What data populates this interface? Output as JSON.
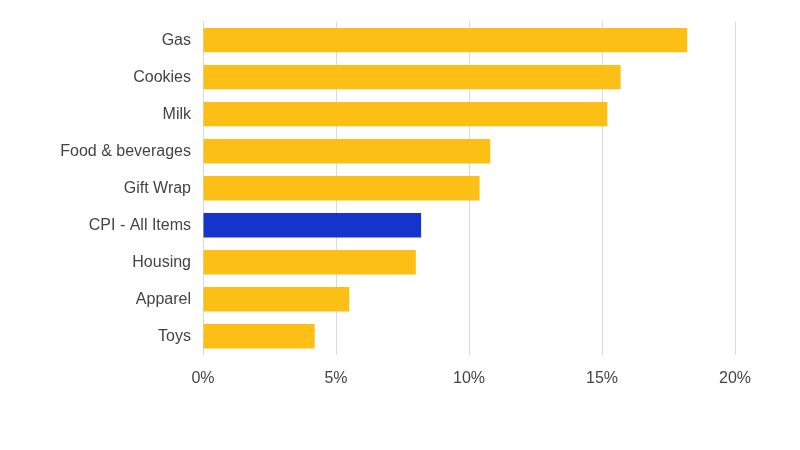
{
  "chart_data": {
    "type": "bar",
    "orientation": "horizontal",
    "categories": [
      "Gas",
      "Cookies",
      "Milk",
      "Food & beverages",
      "Gift Wrap",
      "CPI - All Items",
      "Housing",
      "Apparel",
      "Toys"
    ],
    "values": [
      18.2,
      15.7,
      15.2,
      10.8,
      10.4,
      8.2,
      8.0,
      5.5,
      4.2
    ],
    "colors": [
      "#fbbf16",
      "#fbbf16",
      "#fbbf16",
      "#fbbf16",
      "#fbbf16",
      "#1434cb",
      "#fbbf16",
      "#fbbf16",
      "#fbbf16"
    ],
    "xlim": [
      0,
      20
    ],
    "xticks": [
      {
        "value": 0,
        "label": "0%"
      },
      {
        "value": 5,
        "label": "5%"
      },
      {
        "value": 10,
        "label": "10%"
      },
      {
        "value": 15,
        "label": "15%"
      },
      {
        "value": 20,
        "label": "20%"
      }
    ],
    "grid": true
  }
}
